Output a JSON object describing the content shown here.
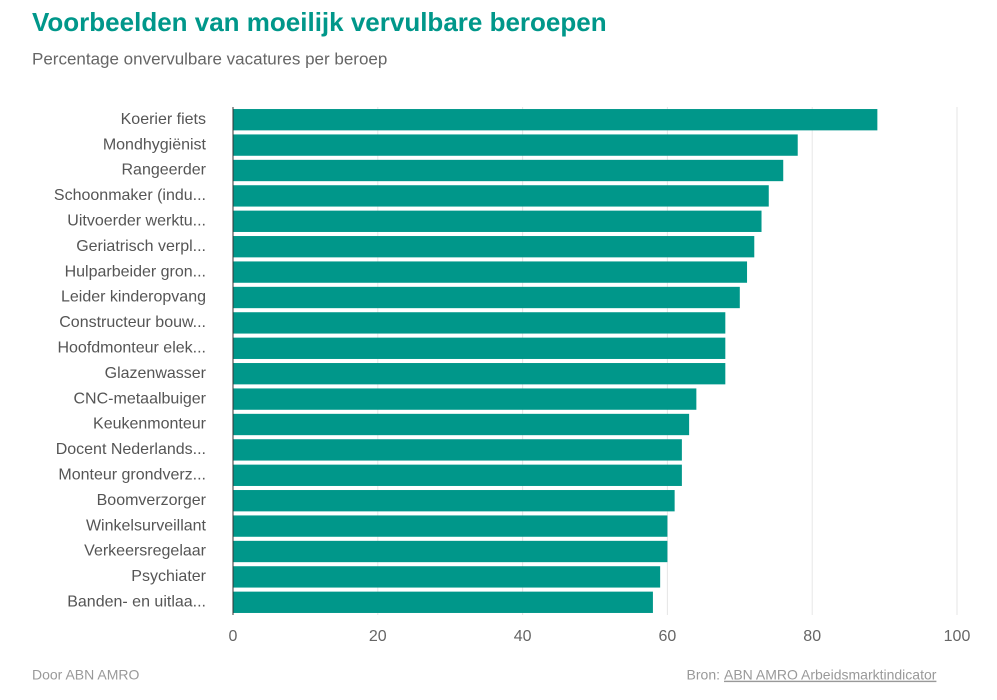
{
  "chart_data": {
    "type": "barh",
    "title": "Voorbeelden van moeilijk vervulbare beroepen",
    "subtitle": "Percentage onvervulbare vacatures per beroep",
    "categories": [
      "Koerier fiets",
      "Mondhygiënist",
      "Rangeerder",
      "Schoonmaker (indu...",
      "Uitvoerder werktu...",
      "Geriatrisch verpl...",
      "Hulparbeider gron...",
      "Leider kinderopvang",
      "Constructeur bouw...",
      "Hoofdmonteur elek...",
      "Glazenwasser",
      "CNC-metaalbuiger",
      "Keukenmonteur",
      "Docent Nederlands...",
      "Monteur grondverz...",
      "Boomverzorger",
      "Winkelsurveillant",
      "Verkeersregelaar",
      "Psychiater",
      "Banden- en uitlaa..."
    ],
    "values": [
      89,
      78,
      76,
      74,
      73,
      72,
      71,
      70,
      68,
      68,
      68,
      64,
      63,
      62,
      62,
      61,
      60,
      60,
      59,
      58
    ],
    "color": "#00978a",
    "xlim": [
      0,
      100
    ],
    "xticks": [
      0,
      20,
      40,
      60,
      80,
      100
    ],
    "grid": true
  },
  "footer": {
    "credit": "Door ABN AMRO",
    "source_prefix": "Bron:",
    "source": "ABN AMRO Arbeidsmarktindicator"
  }
}
